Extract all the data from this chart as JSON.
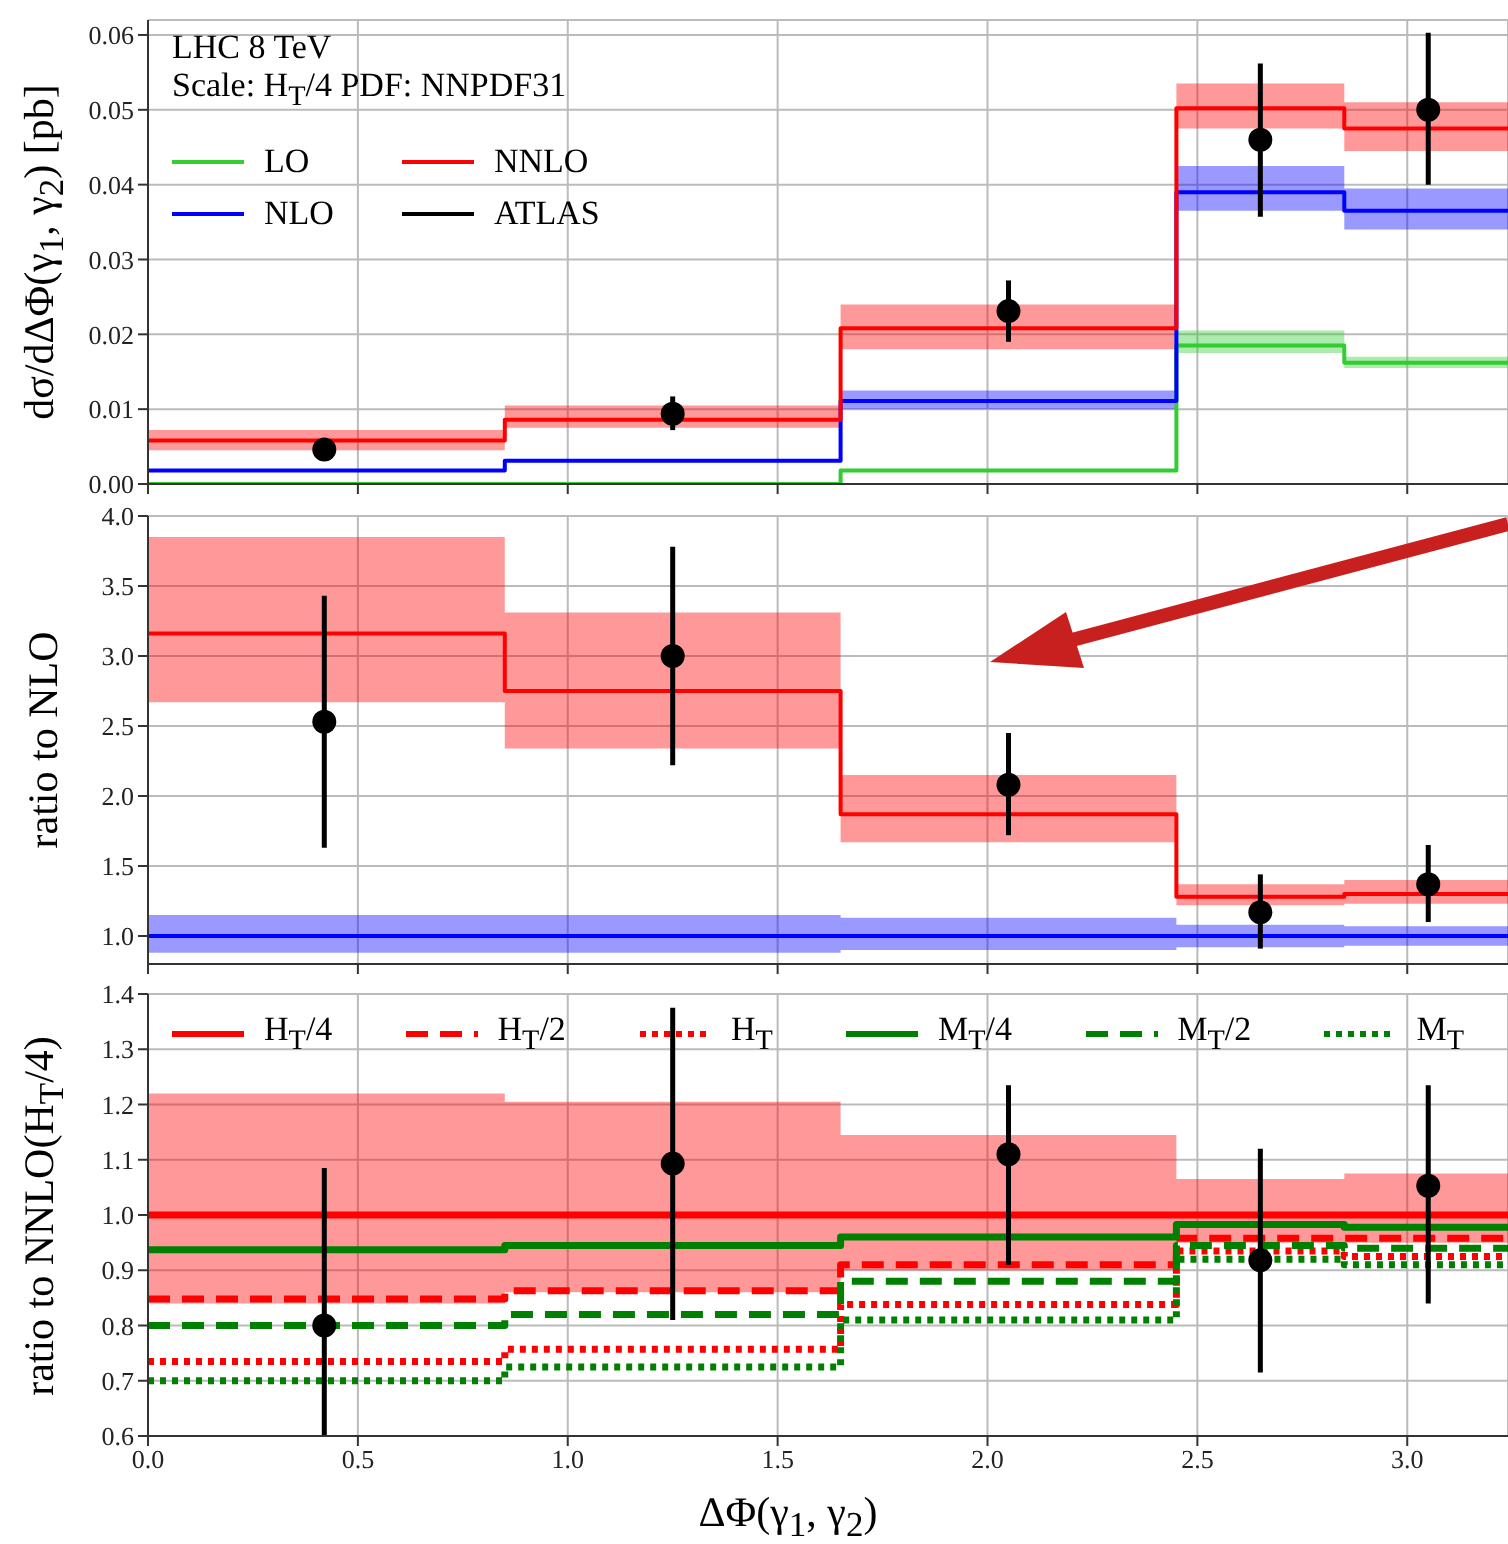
{
  "chart_data": [
    {
      "type": "step",
      "ylabel": "dσ/dΔΦ(γ$_{1}$, γ$_{2}$) [pb]",
      "annotations": [
        "LHC 8 TeV",
        "Scale: H$_{T}$/4 PDF: NNPDF31"
      ],
      "xlim": [
        0,
        3.24
      ],
      "xticks": [
        0,
        0.5,
        1,
        1.5,
        2,
        2.5,
        3
      ],
      "tick_labels": "y",
      "ylim": [
        0,
        0.062
      ],
      "yticks": [
        {
          "value": 0,
          "label": "0.00"
        },
        {
          "value": 0.01,
          "label": "0.01"
        },
        {
          "value": 0.02,
          "label": "0.02"
        },
        {
          "value": 0.03,
          "label": "0.03"
        },
        {
          "value": 0.04,
          "label": "0.04"
        },
        {
          "value": 0.05,
          "label": "0.05"
        },
        {
          "value": 0.06,
          "label": "0.06"
        }
      ],
      "grid": true,
      "legend": "top left",
      "series": [
        {
          "name": "LO",
          "color": "#33cc33",
          "x": [
            0,
            0.85,
            1.65,
            2.45,
            2.85,
            3.24
          ],
          "values": [
            0,
            0,
            0.0018,
            0.0185,
            0.0162,
            0.0162
          ],
          "lower": [
            null,
            null,
            null,
            0.0175,
            0.0155,
            0.0155
          ],
          "upper": [
            null,
            null,
            null,
            0.0205,
            0.017,
            0.017
          ]
        },
        {
          "name": "NLO",
          "color": "#0000ff",
          "x": [
            0,
            0.85,
            1.65,
            2.45,
            2.85,
            3.24
          ],
          "values": [
            0.0018,
            0.0031,
            0.0111,
            0.039,
            0.0365,
            0.0365
          ],
          "lower": [
            null,
            null,
            0.01,
            0.0365,
            0.034,
            0.034
          ],
          "upper": [
            null,
            null,
            0.0125,
            0.0425,
            0.0395,
            0.0395
          ]
        },
        {
          "name": "NNLO",
          "color": "#ff0000",
          "x": [
            0,
            0.85,
            1.65,
            2.45,
            2.85,
            3.24
          ],
          "values": [
            0.0058,
            0.0086,
            0.0208,
            0.0502,
            0.0475,
            0.0475
          ],
          "lower": [
            0.0045,
            0.0075,
            0.018,
            0.0475,
            0.0445,
            0.0445
          ],
          "upper": [
            0.0072,
            0.0105,
            0.024,
            0.0535,
            0.051,
            0.051
          ]
        },
        {
          "name": "ATLAS",
          "type": "scatter",
          "color": "#000000",
          "marker": "circle",
          "x": [
            0.42,
            1.25,
            2.05,
            2.65,
            3.05
          ],
          "values": [
            0.0046,
            0.0094,
            0.0231,
            0.046,
            0.05
          ],
          "errors": [
            [
              0.0034,
              0.0058
            ],
            [
              0.0072,
              0.0117
            ],
            [
              0.019,
              0.0272
            ],
            [
              0.0357,
              0.0562
            ],
            [
              0.04,
              0.0603
            ]
          ]
        }
      ]
    },
    {
      "type": "step",
      "ylabel": "ratio to NLO",
      "xlim": [
        0,
        3.24
      ],
      "xticks": [
        0,
        0.5,
        1,
        1.5,
        2,
        2.5,
        3
      ],
      "tick_labels": "y",
      "ylim": [
        0.8,
        4.0
      ],
      "yticks": [
        {
          "value": 1,
          "label": "1.0"
        },
        {
          "value": 1.5,
          "label": "1.5"
        },
        {
          "value": 2,
          "label": "2.0"
        },
        {
          "value": 2.5,
          "label": "2.5"
        },
        {
          "value": 3,
          "label": "3.0"
        },
        {
          "value": 3.5,
          "label": "3.5"
        },
        {
          "value": 4,
          "label": "4.0"
        }
      ],
      "grid": true,
      "series": [
        {
          "color": "#0000ff",
          "x": [
            0,
            0.85,
            1.65,
            2.45,
            2.85,
            3.24
          ],
          "values": [
            1,
            1,
            1,
            1,
            1,
            1
          ],
          "lower": [
            0.88,
            0.88,
            0.9,
            0.92,
            0.93,
            0.93
          ],
          "upper": [
            1.15,
            1.15,
            1.13,
            1.08,
            1.07,
            1.07
          ]
        },
        {
          "color": "#ff0000",
          "x": [
            0,
            0.85,
            1.65,
            2.45,
            2.85,
            3.24
          ],
          "values": [
            3.16,
            2.75,
            1.87,
            1.28,
            1.3,
            1.3
          ],
          "lower": [
            2.67,
            2.34,
            1.67,
            1.22,
            1.23,
            1.23
          ],
          "upper": [
            3.85,
            3.31,
            2.15,
            1.37,
            1.4,
            1.4
          ]
        },
        {
          "type": "scatter",
          "color": "#000000",
          "marker": "circle",
          "x": [
            0.42,
            1.25,
            2.05,
            2.65,
            3.05
          ],
          "values": [
            2.53,
            3.0,
            2.08,
            1.17,
            1.37
          ],
          "errors": [
            [
              1.63,
              3.43
            ],
            [
              2.22,
              3.78
            ],
            [
              1.72,
              2.45
            ],
            [
              0.91,
              1.44
            ],
            [
              1.1,
              1.65
            ]
          ]
        }
      ]
    },
    {
      "type": "step",
      "xlabel": "ΔΦ(γ$_{1}$, γ$_{2}$)",
      "ylabel": "ratio to NNLO(H$_{T}$/4)",
      "xlim": [
        0,
        3.24
      ],
      "xticks": [
        {
          "value": 0,
          "label": "0.0"
        },
        {
          "value": 0.5,
          "label": "0.5"
        },
        {
          "value": 1,
          "label": "1.0"
        },
        {
          "value": 1.5,
          "label": "1.5"
        },
        {
          "value": 2,
          "label": "2.0"
        },
        {
          "value": 2.5,
          "label": "2.5"
        },
        {
          "value": 3,
          "label": "3.0"
        }
      ],
      "ylim": [
        0.6,
        1.4
      ],
      "yticks": [
        {
          "value": 0.6,
          "label": "0.6"
        },
        {
          "value": 0.7,
          "label": "0.7"
        },
        {
          "value": 0.8,
          "label": "0.8"
        },
        {
          "value": 0.9,
          "label": "0.9"
        },
        {
          "value": 1,
          "label": "1.0"
        },
        {
          "value": 1.1,
          "label": "1.1"
        },
        {
          "value": 1.2,
          "label": "1.2"
        },
        {
          "value": 1.3,
          "label": "1.3"
        },
        {
          "value": 1.4,
          "label": "1.4"
        }
      ],
      "grid": true,
      "legend": "top",
      "series": [
        {
          "name": "H$_{T}$/4",
          "color": "#ff0000",
          "line_style": "solid",
          "x": [
            0,
            0.85,
            1.65,
            2.45,
            2.85,
            3.24
          ],
          "values": [
            1,
            1,
            1,
            1,
            1,
            1
          ],
          "lower": [
            0.84,
            0.86,
            0.9,
            0.95,
            0.95,
            0.95
          ],
          "upper": [
            1.22,
            1.205,
            1.145,
            1.065,
            1.075,
            1.075
          ]
        },
        {
          "name": "H$_{T}$/2",
          "color": "#ff0000",
          "line_style": "dashed",
          "x": [
            0,
            0.85,
            1.65,
            2.45,
            2.85,
            3.24
          ],
          "values": [
            0.848,
            0.863,
            0.91,
            0.958,
            0.958,
            0.958
          ]
        },
        {
          "name": "H$_{T}$",
          "color": "#ff0000",
          "line_style": "dotted",
          "x": [
            0,
            0.85,
            1.65,
            2.45,
            2.85,
            3.24
          ],
          "values": [
            0.735,
            0.757,
            0.838,
            0.935,
            0.925,
            0.925
          ]
        },
        {
          "name": "M$_{T}$/4",
          "color": "#008000",
          "line_style": "solid",
          "x": [
            0,
            0.85,
            1.65,
            2.45,
            2.85,
            3.24
          ],
          "values": [
            0.937,
            0.945,
            0.96,
            0.983,
            0.978,
            0.978
          ]
        },
        {
          "name": "M$_{T}$/2",
          "color": "#008000",
          "line_style": "dashed",
          "x": [
            0,
            0.85,
            1.65,
            2.45,
            2.85,
            3.24
          ],
          "values": [
            0.8,
            0.82,
            0.88,
            0.945,
            0.94,
            0.94
          ]
        },
        {
          "name": "M$_{T}$",
          "color": "#008000",
          "line_style": "dotted",
          "x": [
            0,
            0.85,
            1.65,
            2.45,
            2.85,
            3.24
          ],
          "values": [
            0.7,
            0.725,
            0.81,
            0.92,
            0.91,
            0.91
          ]
        },
        {
          "type": "scatter",
          "color": "#000000",
          "marker": "circle",
          "x": [
            0.42,
            1.25,
            2.05,
            2.65,
            3.05
          ],
          "values": [
            0.8,
            1.093,
            1.11,
            0.918,
            1.053
          ],
          "errors": [
            [
              0.6,
              1.085
            ],
            [
              0.81,
              1.375
            ],
            [
              0.91,
              1.235
            ],
            [
              0.715,
              1.12
            ],
            [
              0.84,
              1.235
            ]
          ]
        }
      ]
    }
  ]
}
